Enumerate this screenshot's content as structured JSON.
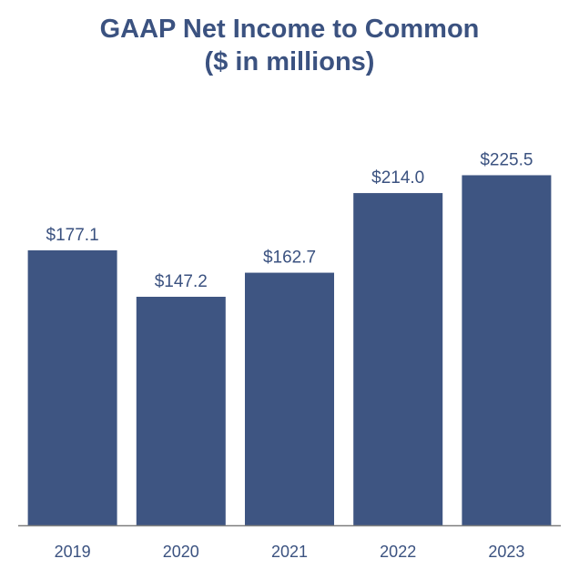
{
  "chart_data": {
    "type": "bar",
    "title": "GAAP Net Income to Common",
    "subtitle": "($ in millions)",
    "categories": [
      "2019",
      "2020",
      "2021",
      "2022",
      "2023"
    ],
    "values": [
      177.1,
      147.2,
      162.7,
      214.0,
      225.5
    ],
    "value_labels": [
      "$177.1",
      "$147.2",
      "$162.7",
      "$214.0",
      "$225.5"
    ],
    "xlabel": "",
    "ylabel": "",
    "ylim": [
      0,
      268
    ],
    "grid": false,
    "legend": "none",
    "bar_color": "#3e5582",
    "text_color": "#3b5280",
    "axis_color": "#7f7f7f"
  }
}
